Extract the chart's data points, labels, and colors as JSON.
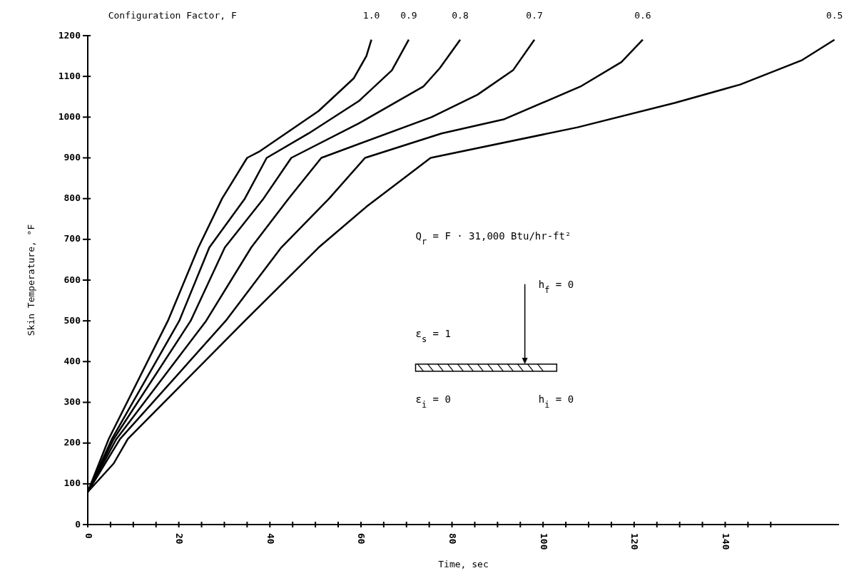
{
  "chart_data": {
    "type": "line",
    "legend_title": "Configuration Factor, F",
    "xlabel": "Time, sec",
    "ylabel": "Skin Temperature, °F",
    "xlim": [
      0,
      165
    ],
    "ylim": [
      0,
      1200
    ],
    "xticks": [
      0,
      {
        "value": 5,
        "label": null
      },
      {
        "value": 10,
        "label": null
      },
      {
        "value": 15,
        "label": null
      },
      20,
      {
        "value": 25,
        "label": null
      },
      {
        "value": 30,
        "label": null
      },
      {
        "value": 35,
        "label": null
      },
      40,
      {
        "value": 45,
        "label": null
      },
      {
        "value": 50,
        "label": null
      },
      {
        "value": 55,
        "label": null
      },
      60,
      {
        "value": 65,
        "label": null
      },
      {
        "value": 70,
        "label": null
      },
      {
        "value": 75,
        "label": null
      },
      80,
      {
        "value": 85,
        "label": null
      },
      {
        "value": 90,
        "label": null
      },
      {
        "value": 95,
        "label": null
      },
      100,
      {
        "value": 105,
        "label": null
      },
      {
        "value": 110,
        "label": null
      },
      {
        "value": 115,
        "label": null
      },
      120,
      {
        "value": 125,
        "label": null
      },
      {
        "value": 130,
        "label": null
      },
      {
        "value": 135,
        "label": null
      },
      140,
      {
        "value": 145,
        "label": null
      },
      {
        "value": 150,
        "label": null
      }
    ],
    "yticks": [
      0,
      100,
      200,
      300,
      400,
      500,
      600,
      700,
      800,
      900,
      1000,
      1100,
      1200
    ],
    "grid": false,
    "marker": "none",
    "line_style": "solid",
    "series": [
      {
        "name": "1.0",
        "color": "#000000",
        "x": [
          0,
          4.6,
          17.6,
          24.3,
          29.5,
          35,
          37.6,
          50.7,
          58.4,
          61.2,
          62.3
        ],
        "values": [
          80,
          210,
          500,
          680,
          800,
          900,
          915,
          1015,
          1095,
          1150,
          1190
        ]
      },
      {
        "name": "0.9",
        "color": "#000000",
        "x": [
          0,
          5.3,
          20.1,
          26.7,
          34.5,
          39.3,
          48.5,
          59.6,
          66.8,
          70.5
        ],
        "values": [
          80,
          210,
          500,
          680,
          800,
          900,
          960,
          1040,
          1115,
          1190
        ]
      },
      {
        "name": "0.8",
        "color": "#000000",
        "x": [
          0,
          5.7,
          22.6,
          30.1,
          38.6,
          44.7,
          59.6,
          73.7,
          77.3,
          81.8
        ],
        "values": [
          80,
          210,
          500,
          680,
          800,
          900,
          985,
          1075,
          1120,
          1190
        ]
      },
      {
        "name": "0.7",
        "color": "#000000",
        "x": [
          0,
          6.3,
          26,
          35.9,
          44.1,
          51.3,
          75.5,
          85.6,
          93.4,
          98.1
        ],
        "values": [
          80,
          210,
          500,
          680,
          800,
          900,
          1000,
          1055,
          1115,
          1190
        ]
      },
      {
        "name": "0.6",
        "color": "#000000",
        "x": [
          0,
          7.1,
          30.3,
          42.5,
          53,
          60.9,
          77.7,
          91.5,
          108.2,
          117.2,
          121.9
        ],
        "values": [
          80,
          210,
          500,
          680,
          800,
          900,
          960,
          995,
          1075,
          1135,
          1190
        ]
      },
      {
        "name": "0.5",
        "color": "#000000",
        "x": [
          0,
          5.7,
          8.8,
          34.5,
          50.7,
          61.2,
          75.3,
          107.6,
          129,
          143.3,
          156.9,
          164
        ],
        "values": [
          80,
          150,
          210,
          500,
          680,
          780,
          900,
          975,
          1035,
          1080,
          1140,
          1190
        ]
      }
    ],
    "annotations": [
      "Q$_{r}$ = F · 31,000 Btu/hr-ft²",
      "h$_{f}$ = 0",
      "ε$_{s}$ = 1",
      "ε$_{i}$ = 0",
      "h$_{i}$ = 0"
    ]
  }
}
